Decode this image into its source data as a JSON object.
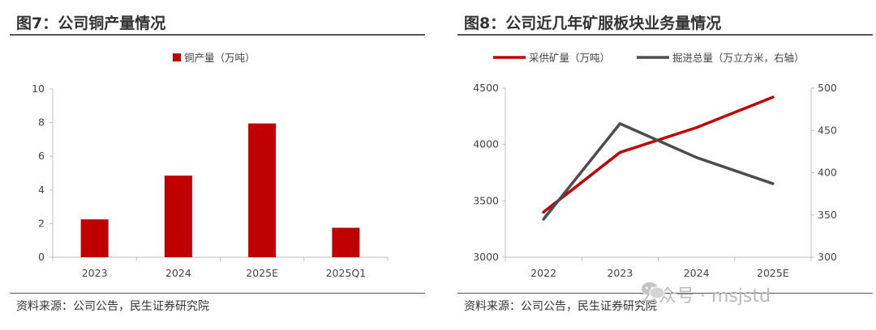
{
  "left": {
    "figure_title": "图7：公司铜产量情况",
    "source": "资料来源：公司公告，民生证券研究院"
  },
  "right": {
    "figure_title": "图8：公司近几年矿服板块业务量情况",
    "source": "资料来源：公司公告，民生证券研究院"
  },
  "watermark": "公众号 · msjstd",
  "colors": {
    "red": "#C00000",
    "gray": "#4D4D4D",
    "axis": "#BFBFBF"
  },
  "chart_data": [
    {
      "type": "bar",
      "title": "",
      "categories": [
        "2023",
        "2024",
        "2025E",
        "2025Q1"
      ],
      "series": [
        {
          "name": "铜产量（万吨）",
          "values": [
            2.25,
            4.85,
            7.95,
            1.75
          ],
          "color": "#C00000"
        }
      ],
      "ylim": [
        0,
        10
      ],
      "yticks": [
        "0",
        "2",
        "4",
        "6",
        "8",
        "10"
      ],
      "grid": false,
      "legend_position": "top-center"
    },
    {
      "type": "line",
      "title": "",
      "categories": [
        "2022",
        "2023",
        "2024",
        "2025E"
      ],
      "series": [
        {
          "name": "采供矿量（万吨）",
          "axis": "left",
          "values": [
            3400,
            3930,
            4150,
            4420
          ],
          "color": "#C00000"
        },
        {
          "name": "掘进总量（万立方米，右轴）",
          "axis": "right",
          "values": [
            345,
            458,
            418,
            387
          ],
          "color": "#4D4D4D"
        }
      ],
      "ylim_left": [
        3000,
        4500
      ],
      "yticks_left": [
        "3000",
        "3500",
        "4000",
        "4500"
      ],
      "ylim_right": [
        300,
        500
      ],
      "yticks_right": [
        "300",
        "350",
        "400",
        "450",
        "500"
      ],
      "grid": false,
      "legend_position": "top"
    }
  ]
}
